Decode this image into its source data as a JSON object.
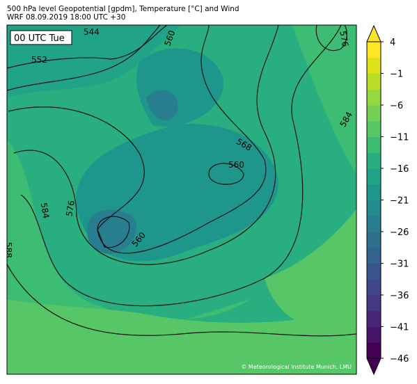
{
  "header": {
    "title": "500 hPa level Geopotential [gpdm], Temperature [°C] and Wind",
    "subtitle": "WRF 08.09.2019 18:00 UTC +30"
  },
  "map": {
    "time_label": "00 UTC Tue",
    "copyright": "© Meteorological Institute Munich, LMU",
    "contour_labels": [
      "544",
      "552",
      "560",
      "560",
      "560",
      "568",
      "576",
      "576",
      "584",
      "584",
      "588"
    ]
  },
  "colorbar": {
    "lim": [
      -46,
      4
    ],
    "ticks": [
      {
        "value": -46,
        "label": "−46"
      },
      {
        "value": -41,
        "label": "−41"
      },
      {
        "value": -36,
        "label": "−36"
      },
      {
        "value": -31,
        "label": "−31"
      },
      {
        "value": -26,
        "label": "−26"
      },
      {
        "value": -21,
        "label": "−21"
      },
      {
        "value": -16,
        "label": "−16"
      },
      {
        "value": -11,
        "label": "−11"
      },
      {
        "value": -6,
        "label": "−6"
      },
      {
        "value": -1,
        "label": "−1"
      },
      4
    ],
    "colors": [
      "#440154",
      "#481467",
      "#482576",
      "#453781",
      "#3f4788",
      "#39558c",
      "#32648e",
      "#2d718e",
      "#287d8e",
      "#238a8d",
      "#1f968b",
      "#20a386",
      "#29af7f",
      "#3dbc74",
      "#56c667",
      "#75d054",
      "#95d840",
      "#bade28",
      "#dde318",
      "#fde725"
    ]
  }
}
